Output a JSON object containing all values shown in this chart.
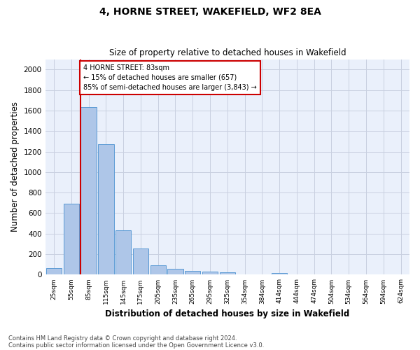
{
  "title": "4, HORNE STREET, WAKEFIELD, WF2 8EA",
  "subtitle": "Size of property relative to detached houses in Wakefield",
  "xlabel": "Distribution of detached houses by size in Wakefield",
  "ylabel": "Number of detached properties",
  "bar_labels": [
    "25sqm",
    "55sqm",
    "85sqm",
    "115sqm",
    "145sqm",
    "175sqm",
    "205sqm",
    "235sqm",
    "265sqm",
    "295sqm",
    "325sqm",
    "354sqm",
    "384sqm",
    "414sqm",
    "444sqm",
    "474sqm",
    "504sqm",
    "534sqm",
    "564sqm",
    "594sqm",
    "624sqm"
  ],
  "bar_values": [
    65,
    695,
    1630,
    1275,
    435,
    255,
    90,
    55,
    40,
    30,
    20,
    0,
    0,
    18,
    0,
    0,
    0,
    0,
    0,
    0,
    0
  ],
  "bar_color": "#aec6e8",
  "bar_edge_color": "#5b9bd5",
  "line_color": "#cc0000",
  "annotation_line1": "4 HORNE STREET: 83sqm",
  "annotation_line2": "← 15% of detached houses are smaller (657)",
  "annotation_line3": "85% of semi-detached houses are larger (3,843) →",
  "ylim": [
    0,
    2100
  ],
  "yticks": [
    0,
    200,
    400,
    600,
    800,
    1000,
    1200,
    1400,
    1600,
    1800,
    2000
  ],
  "footnote1": "Contains HM Land Registry data © Crown copyright and database right 2024.",
  "footnote2": "Contains public sector information licensed under the Open Government Licence v3.0.",
  "background_color": "#ffffff",
  "plot_bg_color": "#eaf0fb",
  "grid_color": "#c8d0e0"
}
